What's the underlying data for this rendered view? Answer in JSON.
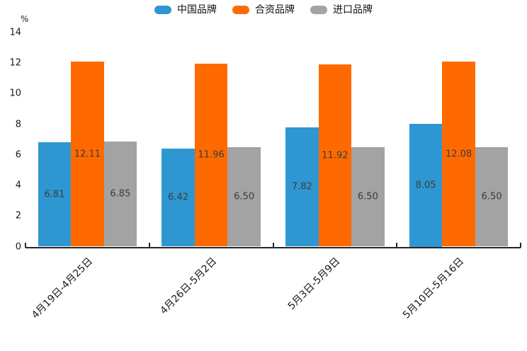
{
  "chart_data": {
    "type": "bar",
    "title": "",
    "ylabel": "%",
    "xlabel": "",
    "ylim": [
      0,
      14
    ],
    "yticks": [
      0,
      2,
      4,
      6,
      8,
      10,
      12,
      14
    ],
    "grid": false,
    "legend_position": "top-center",
    "value_labels_shown": true,
    "categories": [
      "4月19日-4月25日",
      "4月26日-5月2日",
      "5月3日-5月9日",
      "5月10日-5月16日"
    ],
    "series": [
      {
        "name": "中国品牌",
        "color": "#2E97D2",
        "values": [
          6.81,
          6.42,
          7.82,
          8.05
        ],
        "value_labels": [
          "6.81",
          "6.42",
          "7.82",
          "8.05"
        ]
      },
      {
        "name": "合资品牌",
        "color": "#FF6A00",
        "values": [
          12.11,
          11.96,
          11.92,
          12.08
        ],
        "value_labels": [
          "12.11",
          "11.96",
          "11.92",
          "12.08"
        ]
      },
      {
        "name": "进口品牌",
        "color": "#A3A3A3",
        "values": [
          6.85,
          6.5,
          6.5,
          6.5
        ],
        "value_labels": [
          "6.85",
          "6.50",
          "6.50",
          "6.50"
        ]
      }
    ],
    "colors": {
      "axis": "#262626",
      "tick_label": "#1a1a1a",
      "value_label": "#3b3b3b",
      "background": "#ffffff"
    }
  }
}
